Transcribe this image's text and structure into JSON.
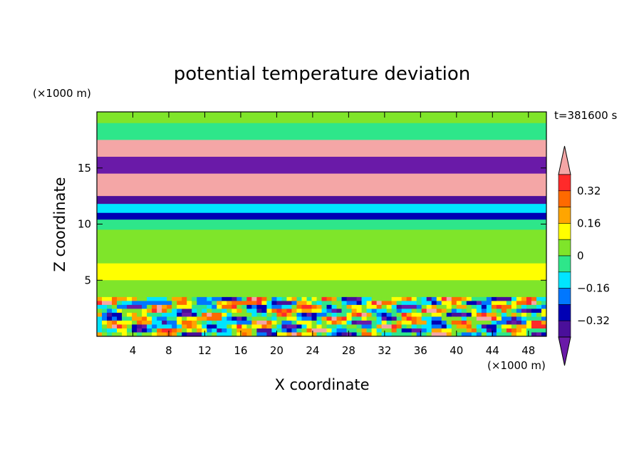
{
  "chart_data": {
    "type": "heatmap",
    "title": "potential temperature deviation",
    "xlabel": "X coordinate",
    "ylabel": "Z coordinate",
    "x_unit": "(×1000 m)",
    "y_unit": "(×1000 m)",
    "time_label": "t=381600 s",
    "xlim": [
      0,
      50
    ],
    "ylim": [
      0,
      20
    ],
    "x_ticks": [
      4,
      8,
      12,
      16,
      20,
      24,
      28,
      32,
      36,
      40,
      44,
      48
    ],
    "y_ticks": [
      5,
      10,
      15
    ],
    "colorbar": {
      "levels": [
        -0.4,
        -0.32,
        -0.24,
        -0.16,
        -0.08,
        0,
        0.08,
        0.16,
        0.24,
        0.32,
        0.4
      ],
      "tick_values": [
        0.32,
        0.16,
        0,
        -0.16,
        -0.32
      ],
      "tick_labels": [
        "0.32",
        "0.16",
        "0",
        "−0.16",
        "−0.32"
      ],
      "colors": [
        "#f4a6a6",
        "#ff2a2a",
        "#ff6a00",
        "#ffa500",
        "#ffff00",
        "#7fe52a",
        "#2ee68a",
        "#00e5ff",
        "#0077ff",
        "#0000b4",
        "#4a0f9a",
        "#6a1aa8"
      ],
      "extend": "both"
    },
    "bands": [
      {
        "z_bottom": 19,
        "z_top": 20,
        "value": 0.05
      },
      {
        "z_bottom": 17.5,
        "z_top": 19,
        "value": -0.02
      },
      {
        "z_bottom": 16,
        "z_top": 17.5,
        "value": 0.45
      },
      {
        "z_bottom": 14.5,
        "z_top": 16,
        "value": -0.45
      },
      {
        "z_bottom": 12.5,
        "z_top": 14.5,
        "value": 0.45
      },
      {
        "z_bottom": 11.8,
        "z_top": 12.5,
        "value": -0.38
      },
      {
        "z_bottom": 11,
        "z_top": 11.8,
        "value": -0.12
      },
      {
        "z_bottom": 10.4,
        "z_top": 11,
        "value": -0.3
      },
      {
        "z_bottom": 9.5,
        "z_top": 10.4,
        "value": -0.05
      },
      {
        "z_bottom": 6.5,
        "z_top": 9.5,
        "value": 0.02
      },
      {
        "z_bottom": 5,
        "z_top": 6.5,
        "value": 0.1
      },
      {
        "z_bottom": 3.5,
        "z_top": 5,
        "value": 0.06
      },
      {
        "z_bottom": 0,
        "z_top": 3.5,
        "value": "turbulent"
      }
    ]
  }
}
